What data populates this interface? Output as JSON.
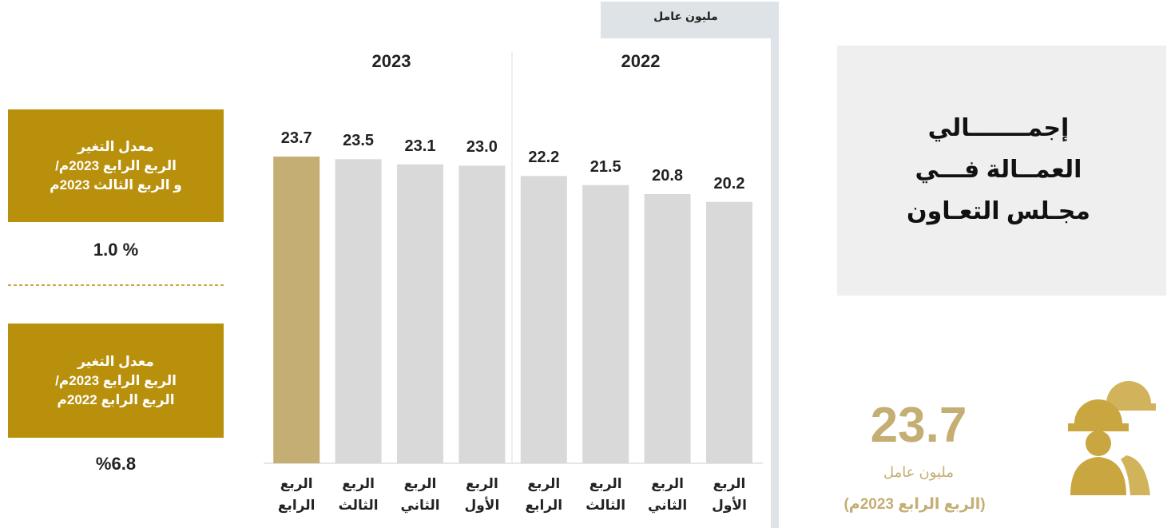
{
  "chart_data": {
    "type": "bar",
    "unit_label": "مليون عامل",
    "groups": [
      "2022",
      "2023"
    ],
    "categories": [
      "الربع الأول",
      "الربع الثاني",
      "الربع الثالث",
      "الربع الرابع",
      "الربع الأول",
      "الربع الثاني",
      "الربع الثالث",
      "الربع الرابع"
    ],
    "values": [
      20.2,
      20.8,
      21.5,
      22.2,
      23.0,
      23.1,
      23.5,
      23.7
    ],
    "value_labels": [
      "20.2",
      "20.8",
      "21.5",
      "22.2",
      "23.0",
      "23.1",
      "23.5",
      "23.7"
    ],
    "colors": [
      "#d9d9d9",
      "#d9d9d9",
      "#d9d9d9",
      "#d9d9d9",
      "#d9d9d9",
      "#d9d9d9",
      "#d9d9d9",
      "#c4ae73"
    ]
  },
  "title_box": {
    "lines": [
      "إجمـــــــالي",
      "العمــالة فـــي",
      "مجـلس التعـاون"
    ]
  },
  "kpi": {
    "value": "23.7",
    "unit": "مليون عامل",
    "period": "(الربع الرابع 2023م)"
  },
  "change_boxes": [
    {
      "lines": [
        "معدل التغير",
        "الربع الرابع 2023م/",
        "و الربع الثالث 2023م"
      ],
      "value": "% 1.0"
    },
    {
      "lines": [
        "معدل التغير",
        "الربع الرابع 2023م/",
        "الربع الرابع 2022م"
      ],
      "value": "%6.8"
    }
  ]
}
